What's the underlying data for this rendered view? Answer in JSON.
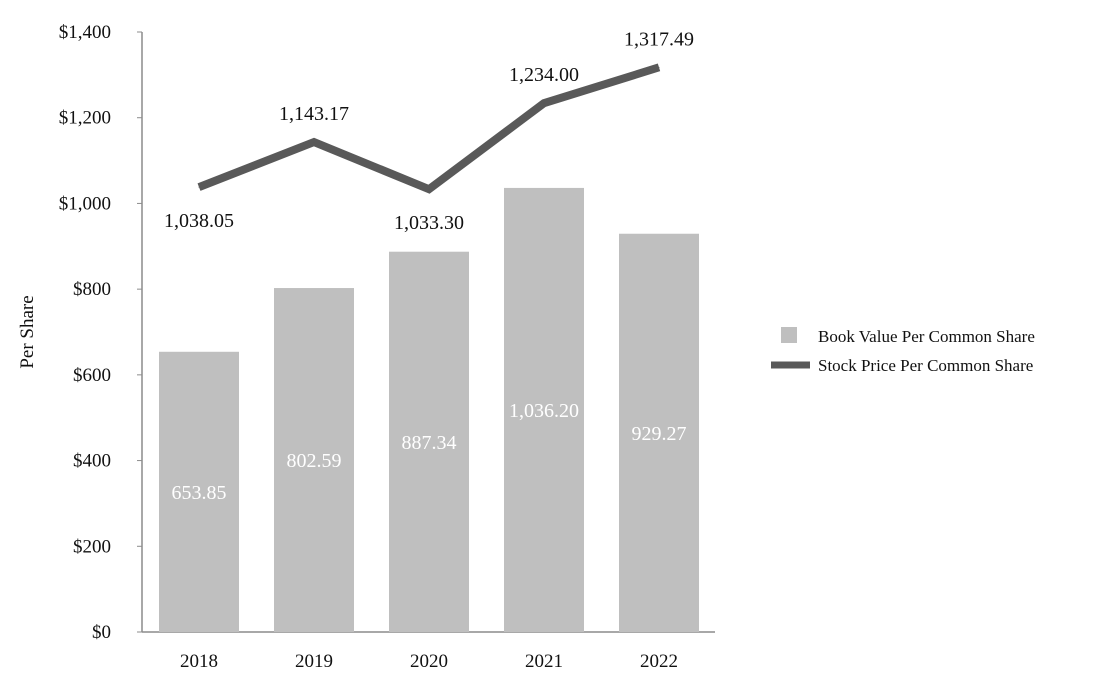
{
  "chart_data": {
    "type": "bar",
    "ylabel": "Per Share",
    "ylim": [
      0,
      1400
    ],
    "yticks": [
      0,
      200,
      400,
      600,
      800,
      1000,
      1200,
      1400
    ],
    "ytick_labels": [
      "$0",
      "$200",
      "$400",
      "$600",
      "$800",
      "$1,000",
      "$1,200",
      "$1,400"
    ],
    "categories": [
      "2018",
      "2019",
      "2020",
      "2021",
      "2022"
    ],
    "grid": false,
    "legend_position": "right",
    "series": [
      {
        "name": "Book Value Per Common Share",
        "type": "bar",
        "color": "#bfbfbf",
        "values": [
          653.85,
          802.59,
          887.34,
          1036.2,
          929.27
        ],
        "labels": [
          "653.85",
          "802.59",
          "887.34",
          "1,036.20",
          "929.27"
        ]
      },
      {
        "name": "Stock Price Per Common Share",
        "type": "line",
        "color": "#595959",
        "values": [
          1038.05,
          1143.17,
          1033.3,
          1234.0,
          1317.49
        ],
        "labels": [
          "1,038.05",
          "1,143.17",
          "1,033.30",
          "1,234.00",
          "1,317.49"
        ]
      }
    ]
  }
}
